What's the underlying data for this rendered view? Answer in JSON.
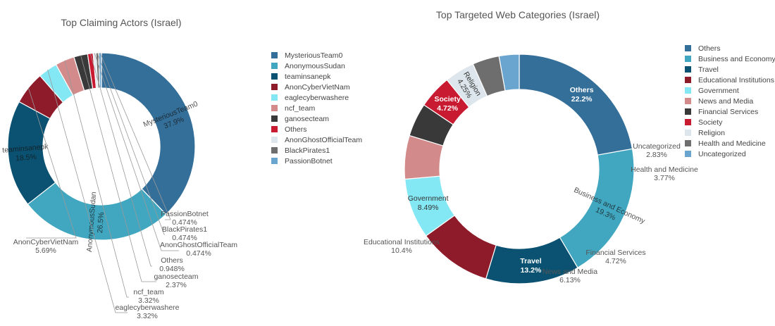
{
  "chart_data": [
    {
      "type": "pie",
      "title": "Top Claiming Actors (Israel)",
      "legend_position": "right",
      "labels": [
        "MysteriousTeam0",
        "AnonymousSudan",
        "teaminsanepk",
        "AnonCyberVietNam",
        "eaglecyberwashere",
        "ncf_team",
        "ganosecteam",
        "Others",
        "AnonGhostOfficialTeam",
        "BlackPirates1",
        "PassionBotnet"
      ],
      "values": [
        37.9,
        26.5,
        18.5,
        5.69,
        3.32,
        3.32,
        2.37,
        0.948,
        0.474,
        0.474,
        0.474
      ],
      "value_labels": [
        "37.9%",
        "26.5%",
        "18.5%",
        "5.69%",
        "3.32%",
        "3.32%",
        "2.37%",
        "0.948%",
        "0.474%",
        "0.474%",
        "0.474%"
      ],
      "colors": [
        "#346f9a",
        "#41a7c0",
        "#0b5272",
        "#8e1b2a",
        "#84e8f4",
        "#d28a8b",
        "#393939",
        "#c81a30",
        "#dde6ec",
        "#6e6e6e",
        "#6aa5cf"
      ]
    },
    {
      "type": "pie",
      "title": "Top Targeted Web Categories (Israel)",
      "legend_position": "right",
      "labels": [
        "Others",
        "Business and Economy",
        "Travel",
        "Educational Institutions",
        "Government",
        "News and Media",
        "Financial Services",
        "Society",
        "Religion",
        "Health and Medicine",
        "Uncategorized"
      ],
      "values": [
        22.2,
        19.3,
        13.2,
        10.4,
        8.49,
        6.13,
        4.72,
        4.72,
        4.25,
        3.77,
        2.83
      ],
      "value_labels": [
        "22.2%",
        "19.3%",
        "13.2%",
        "10.4%",
        "8.49%",
        "6.13%",
        "4.72%",
        "4.72%",
        "4.25%",
        "3.77%",
        "2.83%"
      ],
      "colors": [
        "#346f9a",
        "#41a7c0",
        "#0b5272",
        "#8e1b2a",
        "#84e8f4",
        "#d28a8b",
        "#393939",
        "#c81a30",
        "#dde6ec",
        "#6e6e6e",
        "#6aa5cf"
      ]
    }
  ]
}
